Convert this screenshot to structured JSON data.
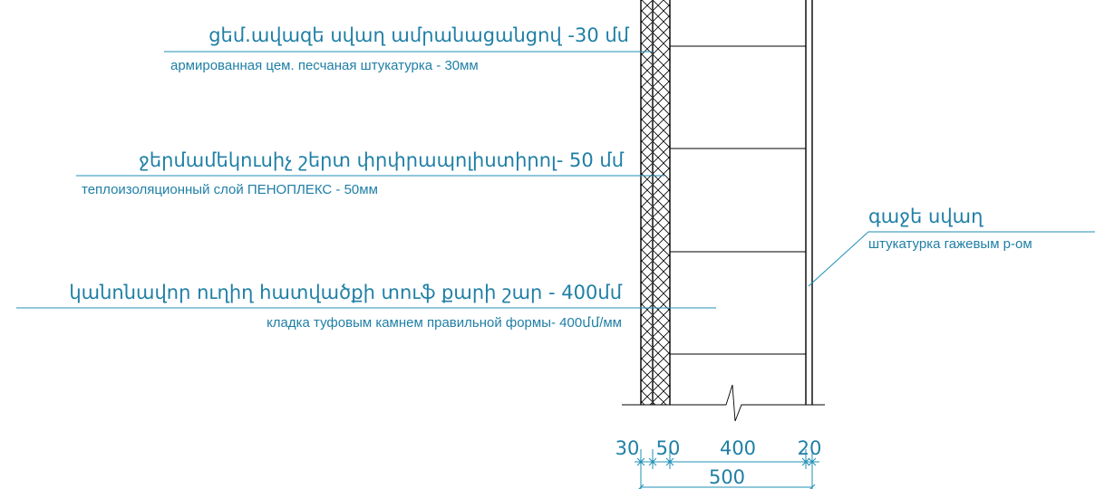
{
  "labels": {
    "plaster_hy": "ցեմ.ավազե սվաղ ամրանացանցով -30 մմ",
    "plaster_ru": "армированная цем. песчаная штукатурка  - 30мм",
    "insulation_hy": "ջերմամեկուսիչ շերտ փրփրապոլիստիրոլ- 50 մմ",
    "insulation_ru": "теплоизоляционный слой ПЕНОПЛЕКС - 50мм",
    "masonry_hy": "կանոնավոր ուղիղ հատվածքի տուֆ քարի շար - 400մմ",
    "masonry_ru": "кладка туфовым камнем правильной формы- 400մմ/мм",
    "gypsum_hy": "գաջե սվաղ",
    "gypsum_ru": "штукатурка гажевым р-ом"
  },
  "dimensions": {
    "d1": "30",
    "d2": "50",
    "d3": "400",
    "d4": "20",
    "total": "500"
  },
  "colors": {
    "annotation": "#1f7fa6",
    "wall": "#000000"
  }
}
